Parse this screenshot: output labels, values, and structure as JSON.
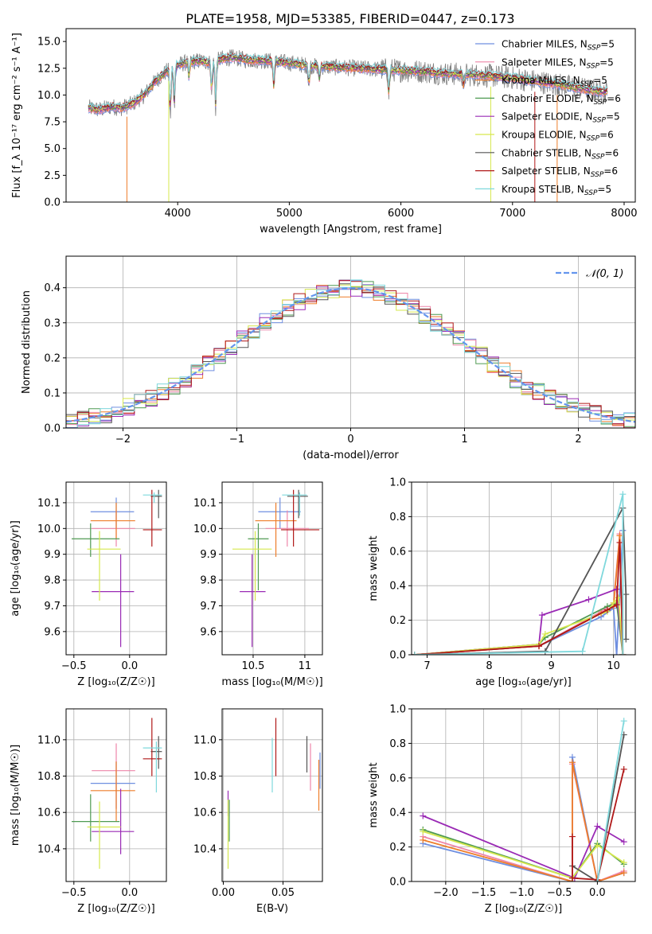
{
  "figure_title": "PLATE=1958, MJD=53385, FIBERID=0447, z=0.173",
  "models": [
    {
      "name": "Chabrier MILES",
      "nssp": "5",
      "color": "#6f8fe0"
    },
    {
      "name": "Salpeter MILES",
      "nssp": "5",
      "color": "#ee86a9"
    },
    {
      "name": "Kroupa MILES",
      "nssp": "5",
      "color": "#ee7d2a"
    },
    {
      "name": "Chabrier ELODIE",
      "nssp": "6",
      "color": "#4f9a52"
    },
    {
      "name": "Salpeter ELODIE",
      "nssp": "5",
      "color": "#9a2ab5"
    },
    {
      "name": "Kroupa ELODIE",
      "nssp": "6",
      "color": "#d6e84e"
    },
    {
      "name": "Chabrier STELIB",
      "nssp": "6",
      "color": "#555555"
    },
    {
      "name": "Salpeter STELIB",
      "nssp": "6",
      "color": "#b01818"
    },
    {
      "name": "Kroupa STELIB",
      "nssp": "5",
      "color": "#7fd8dc"
    }
  ],
  "chart_data": [
    {
      "id": "spectrum",
      "type": "line",
      "xlabel": "wavelength [Angstrom, rest frame]",
      "ylabel": "Flux [f_λ 10⁻¹⁷ erg cm⁻² s⁻¹ A⁻¹]",
      "xlim": [
        3000,
        8100
      ],
      "ylim": [
        0,
        16.2
      ],
      "xticks": [
        4000,
        5000,
        6000,
        7000,
        8000
      ],
      "yticks": [
        0.0,
        2.5,
        5.0,
        7.5,
        10.0,
        12.5,
        15.0
      ],
      "legend_position": "right",
      "data_color": "#808080",
      "continuum": {
        "x": [
          3200,
          3300,
          3400,
          3500,
          3600,
          3700,
          3800,
          3900,
          4000,
          4100,
          4200,
          4300,
          4400,
          4500,
          4600,
          4800,
          5000,
          5200,
          5400,
          5600,
          5800,
          6000,
          6200,
          6400,
          6600,
          6800,
          7000,
          7200,
          7400,
          7600,
          7800
        ],
        "y": [
          8.8,
          8.6,
          8.9,
          8.8,
          9.2,
          10.0,
          11.3,
          12.2,
          12.8,
          13.1,
          13.2,
          13.0,
          13.4,
          13.5,
          13.3,
          13.2,
          13.0,
          12.7,
          12.6,
          12.5,
          12.4,
          12.3,
          12.2,
          12.0,
          11.9,
          11.8,
          11.6,
          11.3,
          11.0,
          10.6,
          10.3
        ]
      },
      "absorption_lines": [
        {
          "x": 3934,
          "depth": 4.5
        },
        {
          "x": 3969,
          "depth": 3.5
        },
        {
          "x": 4102,
          "depth": 1.5
        },
        {
          "x": 4304,
          "depth": 3.0
        },
        {
          "x": 4340,
          "depth": 4.5
        },
        {
          "x": 4861,
          "depth": 2.5
        },
        {
          "x": 5175,
          "depth": 2.0
        },
        {
          "x": 5270,
          "depth": 1.2
        },
        {
          "x": 5892,
          "depth": 2.3
        },
        {
          "x": 6563,
          "depth": 1.2
        }
      ]
    },
    {
      "id": "residuals",
      "type": "line",
      "xlabel": "(data-model)/error",
      "ylabel": "Normed distribution",
      "xlim": [
        -2.5,
        2.5
      ],
      "ylim": [
        0,
        0.49
      ],
      "xticks": [
        -2,
        -1,
        0,
        1,
        2
      ],
      "yticks": [
        0.0,
        0.1,
        0.2,
        0.3,
        0.4
      ],
      "grid": true,
      "legend_position": "top-right",
      "reference_label": "𝒩(0, 1)",
      "reference_color": "#6495ed",
      "bin_width": 0.1
    },
    {
      "id": "age-vs-Z",
      "type": "scatter",
      "xlabel": "Z [log₁₀(Z/Z☉)]",
      "ylabel": "age  [log₁₀(age/yr)]",
      "xlim": [
        -0.57,
        0.33
      ],
      "ylim": [
        9.51,
        10.18
      ],
      "xticks": [
        -0.5,
        0.0
      ],
      "xticklabels": [
        "−0.5",
        "0.0"
      ],
      "yticks": [
        9.6,
        9.7,
        9.8,
        9.9,
        10.0,
        10.1
      ],
      "grid": true,
      "points": [
        {
          "m": 0,
          "x": -0.12,
          "xlo": -0.35,
          "xhi": 0.04,
          "y": 10.065,
          "ylo": 10.0,
          "yhi": 10.12
        },
        {
          "m": 1,
          "x": -0.12,
          "xlo": -0.34,
          "xhi": 0.05,
          "y": 10.0,
          "ylo": 9.93,
          "yhi": 10.07
        },
        {
          "m": 2,
          "x": -0.12,
          "xlo": -0.35,
          "xhi": 0.05,
          "y": 10.03,
          "ylo": 9.96,
          "yhi": 10.1
        },
        {
          "m": 3,
          "x": -0.35,
          "xlo": -0.52,
          "xhi": -0.09,
          "y": 9.96,
          "ylo": 9.89,
          "yhi": 10.02
        },
        {
          "m": 4,
          "x": -0.08,
          "xlo": -0.34,
          "xhi": 0.04,
          "y": 9.755,
          "ylo": 9.54,
          "yhi": 9.9
        },
        {
          "m": 5,
          "x": -0.27,
          "xlo": -0.38,
          "xhi": -0.08,
          "y": 9.92,
          "ylo": 9.72,
          "yhi": 9.99
        },
        {
          "m": 6,
          "x": 0.26,
          "xlo": 0.19,
          "xhi": 0.29,
          "y": 10.125,
          "ylo": 10.04,
          "yhi": 10.15
        },
        {
          "m": 7,
          "x": 0.2,
          "xlo": 0.12,
          "xhi": 0.29,
          "y": 9.995,
          "ylo": 9.93,
          "yhi": 10.15
        },
        {
          "m": 8,
          "x": 0.22,
          "xlo": 0.12,
          "xhi": 0.29,
          "y": 10.13,
          "ylo": 10.1,
          "yhi": 10.14
        }
      ]
    },
    {
      "id": "age-vs-mass",
      "type": "scatter",
      "xlabel": "mass [log₁₀(M/M☉)]",
      "ylabel": "",
      "xlim": [
        10.2,
        11.17
      ],
      "ylim": [
        9.51,
        10.18
      ],
      "xticks": [
        10.5,
        11.0
      ],
      "yticks": [
        9.6,
        9.7,
        9.8,
        9.9,
        10.0,
        10.1
      ],
      "grid": true,
      "points": [
        {
          "m": 0,
          "x": 10.76,
          "xlo": 10.55,
          "xhi": 10.96,
          "y": 10.065,
          "ylo": 10.0,
          "yhi": 10.12
        },
        {
          "m": 1,
          "x": 10.83,
          "xlo": 10.62,
          "xhi": 11.04,
          "y": 10.0,
          "ylo": 9.93,
          "yhi": 10.07
        },
        {
          "m": 2,
          "x": 10.72,
          "xlo": 10.52,
          "xhi": 10.92,
          "y": 10.03,
          "ylo": 9.89,
          "yhi": 10.1
        },
        {
          "m": 3,
          "x": 10.55,
          "xlo": 10.45,
          "xhi": 10.65,
          "y": 9.96,
          "ylo": 9.76,
          "yhi": 10.02
        },
        {
          "m": 4,
          "x": 10.49,
          "xlo": 10.37,
          "xhi": 10.62,
          "y": 9.755,
          "ylo": 9.54,
          "yhi": 9.9
        },
        {
          "m": 5,
          "x": 10.52,
          "xlo": 10.3,
          "xhi": 10.68,
          "y": 9.92,
          "ylo": 9.72,
          "yhi": 9.99
        },
        {
          "m": 6,
          "x": 10.94,
          "xlo": 10.83,
          "xhi": 11.03,
          "y": 10.125,
          "ylo": 10.04,
          "yhi": 10.15
        },
        {
          "m": 7,
          "x": 10.89,
          "xlo": 10.77,
          "xhi": 11.14,
          "y": 9.995,
          "ylo": 9.93,
          "yhi": 10.15
        },
        {
          "m": 8,
          "x": 10.95,
          "xlo": 10.78,
          "xhi": 11.02,
          "y": 10.13,
          "ylo": 10.05,
          "yhi": 10.14
        }
      ]
    },
    {
      "id": "weight-vs-age",
      "type": "line",
      "xlabel": "age  [log₁₀(age/yr)]",
      "ylabel": "mass weight",
      "xlim": [
        6.75,
        10.35
      ],
      "ylim": [
        0,
        1.0
      ],
      "xticks": [
        7,
        8,
        9,
        10
      ],
      "yticks": [
        0.0,
        0.2,
        0.4,
        0.6,
        0.8,
        1.0
      ],
      "grid": true,
      "series": [
        {
          "m": 0,
          "x": [
            6.8,
            8.8,
            9.8,
            10.0,
            10.05,
            10.15
          ],
          "y": [
            0.0,
            0.05,
            0.22,
            0.27,
            0.0,
            0.72
          ]
        },
        {
          "m": 1,
          "x": [
            6.8,
            8.8,
            9.8,
            10.0,
            10.1,
            10.15
          ],
          "y": [
            0.0,
            0.05,
            0.25,
            0.3,
            0.7,
            0.0
          ]
        },
        {
          "m": 2,
          "x": [
            6.8,
            8.8,
            9.8,
            10.0,
            10.1,
            10.15
          ],
          "y": [
            0.0,
            0.05,
            0.24,
            0.28,
            0.69,
            0.0
          ]
        },
        {
          "m": 3,
          "x": [
            6.8,
            8.8,
            8.9,
            9.9,
            10.05,
            10.15
          ],
          "y": [
            0.0,
            0.06,
            0.1,
            0.28,
            0.3,
            0.0
          ]
        },
        {
          "m": 4,
          "x": [
            6.8,
            8.8,
            8.85,
            9.6,
            10.05,
            10.15
          ],
          "y": [
            0.0,
            0.06,
            0.23,
            0.32,
            0.38,
            0.0
          ]
        },
        {
          "m": 5,
          "x": [
            6.8,
            8.8,
            8.9,
            9.9,
            10.0,
            10.08,
            10.15
          ],
          "y": [
            0.0,
            0.06,
            0.12,
            0.25,
            0.3,
            0.33,
            0.0
          ]
        },
        {
          "m": 6,
          "x": [
            6.8,
            8.9,
            10.15,
            10.2,
            10.2
          ],
          "y": [
            0.0,
            0.02,
            0.85,
            0.35,
            0.09
          ]
        },
        {
          "m": 7,
          "x": [
            6.8,
            8.8,
            9.9,
            10.05,
            10.1,
            10.15
          ],
          "y": [
            0.0,
            0.05,
            0.26,
            0.29,
            0.65,
            0.0
          ]
        },
        {
          "m": 8,
          "x": [
            6.8,
            9.5,
            10.15,
            10.15
          ],
          "y": [
            0.0,
            0.02,
            0.93,
            0.0
          ]
        }
      ]
    },
    {
      "id": "mass-vs-Z",
      "type": "scatter",
      "xlabel": "Z [log₁₀(Z/Z☉)]",
      "ylabel": "mass [log₁₀(M/M☉)]",
      "xlim": [
        -0.57,
        0.33
      ],
      "ylim": [
        10.22,
        11.17
      ],
      "xticks": [
        -0.5,
        0.0
      ],
      "xticklabels": [
        "−0.5",
        "0.0"
      ],
      "yticks": [
        10.4,
        10.6,
        10.8,
        11.0
      ],
      "grid": true,
      "points": [
        {
          "m": 0,
          "x": -0.12,
          "xlo": -0.35,
          "xhi": 0.05,
          "y": 10.76,
          "ylo": 10.62,
          "yhi": 10.88
        },
        {
          "m": 1,
          "x": -0.12,
          "xlo": -0.34,
          "xhi": 0.05,
          "y": 10.83,
          "ylo": 10.62,
          "yhi": 10.98
        },
        {
          "m": 2,
          "x": -0.12,
          "xlo": -0.35,
          "xhi": 0.05,
          "y": 10.72,
          "ylo": 10.55,
          "yhi": 10.88
        },
        {
          "m": 3,
          "x": -0.35,
          "xlo": -0.52,
          "xhi": -0.09,
          "y": 10.55,
          "ylo": 10.44,
          "yhi": 10.7
        },
        {
          "m": 4,
          "x": -0.08,
          "xlo": -0.34,
          "xhi": 0.04,
          "y": 10.495,
          "ylo": 10.37,
          "yhi": 10.73
        },
        {
          "m": 5,
          "x": -0.27,
          "xlo": -0.38,
          "xhi": -0.08,
          "y": 10.52,
          "ylo": 10.29,
          "yhi": 10.66
        },
        {
          "m": 6,
          "x": 0.26,
          "xlo": 0.19,
          "xhi": 0.29,
          "y": 10.935,
          "ylo": 10.84,
          "yhi": 11.02
        },
        {
          "m": 7,
          "x": 0.2,
          "xlo": 0.12,
          "xhi": 0.29,
          "y": 10.895,
          "ylo": 10.8,
          "yhi": 11.12
        },
        {
          "m": 8,
          "x": 0.24,
          "xlo": 0.12,
          "xhi": 0.29,
          "y": 10.955,
          "ylo": 10.71,
          "yhi": 10.99
        }
      ]
    },
    {
      "id": "mass-vs-ebv",
      "type": "scatter",
      "xlabel": "E(B-V)",
      "ylabel": "",
      "xlim": [
        -0.001,
        0.083
      ],
      "ylim": [
        10.22,
        11.17
      ],
      "xticks": [
        0.0,
        0.05
      ],
      "xticklabels": [
        "0.00",
        "0.05"
      ],
      "yticks": [
        10.4,
        10.6,
        10.8,
        11.0
      ],
      "grid": true,
      "points": [
        {
          "m": 0,
          "x": 0.081,
          "y": 10.84,
          "ylo": 10.73,
          "yhi": 10.93
        },
        {
          "m": 1,
          "x": 0.073,
          "y": 10.88,
          "ylo": 10.72,
          "yhi": 10.98
        },
        {
          "m": 2,
          "x": 0.08,
          "y": 10.75,
          "ylo": 10.61,
          "yhi": 10.89
        },
        {
          "m": 3,
          "x": 0.005,
          "y": 10.55,
          "ylo": 10.44,
          "yhi": 10.67
        },
        {
          "m": 4,
          "x": 0.004,
          "y": 10.66,
          "ylo": 10.58,
          "yhi": 10.72
        },
        {
          "m": 5,
          "x": 0.004,
          "y": 10.47,
          "ylo": 10.29,
          "yhi": 10.67
        },
        {
          "m": 6,
          "x": 0.07,
          "y": 10.93,
          "ylo": 10.82,
          "yhi": 11.02
        },
        {
          "m": 7,
          "x": 0.044,
          "y": 10.95,
          "ylo": 10.8,
          "yhi": 11.12
        },
        {
          "m": 8,
          "x": 0.041,
          "y": 10.86,
          "ylo": 10.71,
          "yhi": 11.01
        }
      ]
    },
    {
      "id": "weight-vs-Z",
      "type": "line",
      "xlabel": "Z [log₁₀(Z/Z☉)]",
      "ylabel": "mass weight",
      "xlim": [
        -2.45,
        0.5
      ],
      "ylim": [
        0,
        1.0
      ],
      "xticks": [
        -2.0,
        -1.5,
        -1.0,
        -0.5,
        0.0
      ],
      "xticklabels": [
        "−2.0",
        "−1.5",
        "−1.0",
        "−0.5",
        "0.0"
      ],
      "yticks": [
        0.0,
        0.2,
        0.4,
        0.6,
        0.8,
        1.0
      ],
      "grid": true,
      "series": [
        {
          "m": 0,
          "x": [
            -2.3,
            -0.33,
            -0.33,
            0.0,
            0.35
          ],
          "y": [
            0.22,
            0.0,
            0.72,
            0.0,
            0.05
          ]
        },
        {
          "m": 1,
          "x": [
            -2.3,
            -0.33,
            -0.33,
            0.0,
            0.35
          ],
          "y": [
            0.26,
            0.0,
            0.68,
            0.0,
            0.06
          ]
        },
        {
          "m": 2,
          "x": [
            -2.3,
            -0.33,
            -0.33,
            0.0,
            0.35
          ],
          "y": [
            0.24,
            0.0,
            0.69,
            0.0,
            0.05
          ]
        },
        {
          "m": 3,
          "x": [
            -2.3,
            -0.33,
            0.0,
            0.35
          ],
          "y": [
            0.3,
            0.02,
            0.22,
            0.1
          ]
        },
        {
          "m": 4,
          "x": [
            -2.3,
            -0.3,
            0.0,
            0.35
          ],
          "y": [
            0.38,
            0.02,
            0.32,
            0.23
          ]
        },
        {
          "m": 5,
          "x": [
            -2.3,
            -0.33,
            0.0,
            0.35
          ],
          "y": [
            0.29,
            0.02,
            0.21,
            0.11
          ]
        },
        {
          "m": 6,
          "x": [
            -0.33,
            0.0,
            0.35
          ],
          "y": [
            0.09,
            0.0,
            0.85
          ]
        },
        {
          "m": 7,
          "x": [
            -0.33,
            -0.33,
            0.0,
            0.35
          ],
          "y": [
            0.26,
            0.02,
            0.01,
            0.65
          ]
        },
        {
          "m": 8,
          "x": [
            0.0,
            0.35
          ],
          "y": [
            0.0,
            0.93
          ]
        }
      ]
    }
  ]
}
